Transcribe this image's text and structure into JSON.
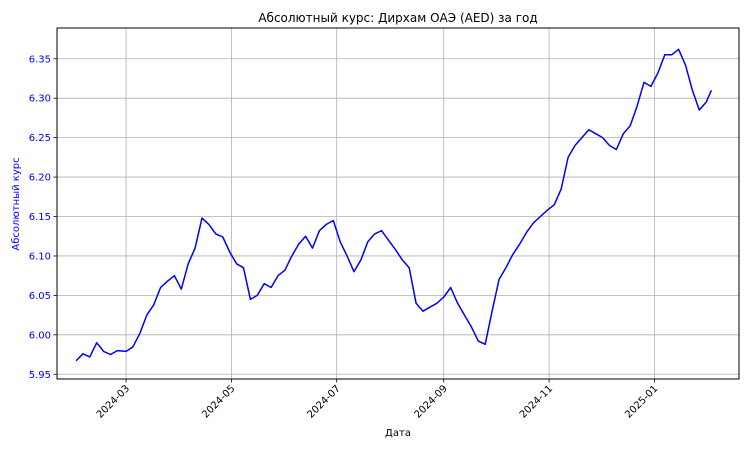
{
  "chart_data": {
    "type": "line",
    "title": "Абсолютный курс: Дирхам ОАЭ (AED) за год",
    "xlabel": "Дата",
    "ylabel": "Абсолютный курс",
    "ylim": [
      5.944,
      6.389
    ],
    "xlim": [
      "2024-01-21",
      "2025-02-19"
    ],
    "grid": true,
    "colors": {
      "line": "#0000ff",
      "ylabel": "#0000ff",
      "yticks": "#0000ff",
      "grid": "#b0b0b0"
    },
    "yticks": [
      {
        "value": 5.95,
        "label": "5.95"
      },
      {
        "value": 6.0,
        "label": "6.00"
      },
      {
        "value": 6.05,
        "label": "6.05"
      },
      {
        "value": 6.1,
        "label": "6.10"
      },
      {
        "value": 6.15,
        "label": "6.15"
      },
      {
        "value": 6.2,
        "label": "6.20"
      },
      {
        "value": 6.25,
        "label": "6.25"
      },
      {
        "value": 6.3,
        "label": "6.30"
      },
      {
        "value": 6.35,
        "label": "6.35"
      }
    ],
    "xticks": [
      {
        "value": "2024-03-01",
        "label": "2024-03"
      },
      {
        "value": "2024-05-01",
        "label": "2024-05"
      },
      {
        "value": "2024-07-01",
        "label": "2024-07"
      },
      {
        "value": "2024-09-01",
        "label": "2024-09"
      },
      {
        "value": "2024-11-01",
        "label": "2024-11"
      },
      {
        "value": "2025-01-01",
        "label": "2025-01"
      }
    ],
    "series": [
      {
        "x": [
          "2024-02-01",
          "2024-02-05",
          "2024-02-09",
          "2024-02-13",
          "2024-02-17",
          "2024-02-21",
          "2024-02-25",
          "2024-03-01",
          "2024-03-05",
          "2024-03-09",
          "2024-03-13",
          "2024-03-17",
          "2024-03-21",
          "2024-03-25",
          "2024-03-29",
          "2024-04-02",
          "2024-04-06",
          "2024-04-10",
          "2024-04-14",
          "2024-04-18",
          "2024-04-22",
          "2024-04-26",
          "2024-04-30",
          "2024-05-04",
          "2024-05-08",
          "2024-05-12",
          "2024-05-16",
          "2024-05-20",
          "2024-05-24",
          "2024-05-28",
          "2024-06-01",
          "2024-06-05",
          "2024-06-09",
          "2024-06-13",
          "2024-06-17",
          "2024-06-21",
          "2024-06-25",
          "2024-06-29",
          "2024-07-03",
          "2024-07-07",
          "2024-07-11",
          "2024-07-15",
          "2024-07-19",
          "2024-07-23",
          "2024-07-27",
          "2024-07-31",
          "2024-08-04",
          "2024-08-08",
          "2024-08-12",
          "2024-08-16",
          "2024-08-20",
          "2024-08-24",
          "2024-08-28",
          "2024-09-01",
          "2024-09-05",
          "2024-09-09",
          "2024-09-13",
          "2024-09-17",
          "2024-09-21",
          "2024-09-25",
          "2024-09-29",
          "2024-10-03",
          "2024-10-07",
          "2024-10-11",
          "2024-10-15",
          "2024-10-19",
          "2024-10-23",
          "2024-10-27",
          "2024-10-31",
          "2024-11-04",
          "2024-11-08",
          "2024-11-12",
          "2024-11-16",
          "2024-11-20",
          "2024-11-24",
          "2024-11-28",
          "2024-12-02",
          "2024-12-06",
          "2024-12-10",
          "2024-12-14",
          "2024-12-18",
          "2024-12-22",
          "2024-12-26",
          "2024-12-30",
          "2025-01-03",
          "2025-01-07",
          "2025-01-11",
          "2025-01-15",
          "2025-01-19",
          "2025-01-23",
          "2025-01-27",
          "2025-01-31",
          "2025-02-03"
        ],
        "y": [
          5.967,
          5.976,
          5.972,
          5.99,
          5.979,
          5.975,
          5.98,
          5.979,
          5.985,
          6.002,
          6.025,
          6.038,
          6.06,
          6.068,
          6.075,
          6.058,
          6.09,
          6.11,
          6.148,
          6.14,
          6.128,
          6.124,
          6.105,
          6.09,
          6.085,
          6.045,
          6.05,
          6.065,
          6.06,
          6.075,
          6.082,
          6.1,
          6.115,
          6.125,
          6.11,
          6.132,
          6.14,
          6.145,
          6.118,
          6.1,
          6.08,
          6.095,
          6.118,
          6.128,
          6.132,
          6.12,
          6.108,
          6.095,
          6.085,
          6.04,
          6.03,
          6.035,
          6.04,
          6.048,
          6.06,
          6.04,
          6.025,
          6.01,
          5.992,
          5.988,
          6.03,
          6.07,
          6.085,
          6.102,
          6.115,
          6.13,
          6.142,
          6.15,
          6.158,
          6.165,
          6.185,
          6.225,
          6.24,
          6.25,
          6.26,
          6.255,
          6.25,
          6.24,
          6.235,
          6.255,
          6.265,
          6.29,
          6.32,
          6.315,
          6.332,
          6.355,
          6.355,
          6.362,
          6.342,
          6.31,
          6.285,
          6.295,
          6.31
        ]
      }
    ]
  }
}
